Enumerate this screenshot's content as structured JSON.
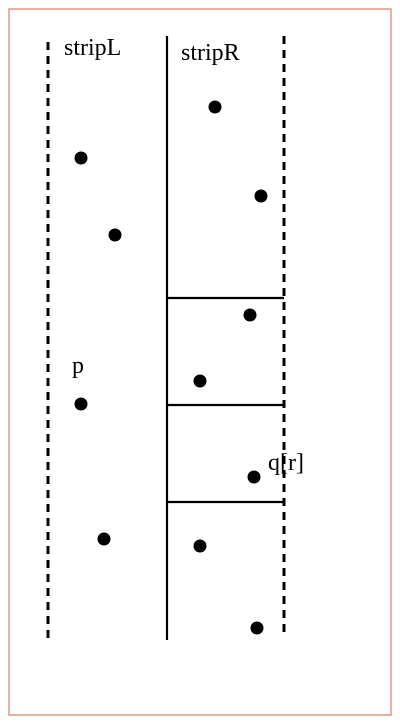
{
  "labels": {
    "strip_left": "stripL",
    "strip_right": "stripR",
    "point_p": "p",
    "point_q": "q[r]"
  },
  "colors": {
    "frame_border": "#d9805a",
    "ink": "#000000",
    "background": "#ffffff"
  }
}
